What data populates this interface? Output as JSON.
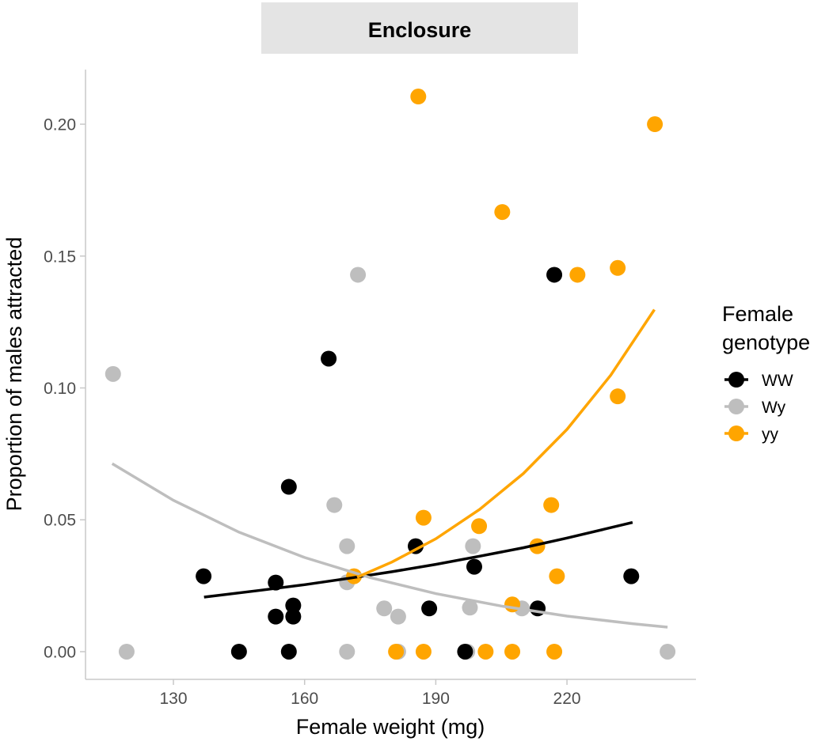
{
  "chart_data": {
    "type": "scatter",
    "facet_title": "Enclosure",
    "xlabel": "Female weight (mg)",
    "ylabel": "Proportion of males attracted",
    "xlim": [
      109.9,
      249.5
    ],
    "ylim": [
      -0.0105,
      0.2207
    ],
    "x_ticks": [
      130,
      160,
      190,
      220
    ],
    "x_tick_labels": [
      "130",
      "160",
      "190",
      "220"
    ],
    "y_ticks": [
      0.0,
      0.05,
      0.1,
      0.15,
      0.2
    ],
    "y_tick_labels": [
      "0.00",
      "0.05",
      "0.10",
      "0.15",
      "0.20"
    ],
    "grid": false,
    "legend": {
      "title": "Female genotype",
      "placement": "right",
      "entries": [
        "WW",
        "Wy",
        "yy"
      ]
    },
    "series": [
      {
        "name": "WW",
        "color": "#000000",
        "points": [
          [
            136.9,
            0.0286
          ],
          [
            145.0,
            0.0
          ],
          [
            153.4,
            0.0262
          ],
          [
            153.4,
            0.0133
          ],
          [
            156.4,
            0.0625
          ],
          [
            156.4,
            0.0
          ],
          [
            157.4,
            0.0175
          ],
          [
            157.4,
            0.0133
          ],
          [
            165.5,
            0.1111
          ],
          [
            185.4,
            0.04
          ],
          [
            188.5,
            0.0164
          ],
          [
            196.7,
            0.0
          ],
          [
            198.8,
            0.0322
          ],
          [
            213.3,
            0.0164
          ],
          [
            217.1,
            0.1429
          ],
          [
            234.7,
            0.0286
          ]
        ],
        "fit": [
          [
            137,
            0.0207
          ],
          [
            150,
            0.0233
          ],
          [
            160,
            0.0254
          ],
          [
            170,
            0.0278
          ],
          [
            180,
            0.0303
          ],
          [
            190,
            0.0331
          ],
          [
            200,
            0.0362
          ],
          [
            210,
            0.0394
          ],
          [
            220,
            0.0431
          ],
          [
            235,
            0.049
          ]
        ]
      },
      {
        "name": "Wy",
        "color": "#bebebe",
        "points": [
          [
            116.2,
            0.1053
          ],
          [
            119.3,
            0.0
          ],
          [
            166.8,
            0.0556
          ],
          [
            169.7,
            0.04
          ],
          [
            169.7,
            0.0263
          ],
          [
            169.7,
            0.0
          ],
          [
            172.2,
            0.1429
          ],
          [
            178.2,
            0.0164
          ],
          [
            181.4,
            0.0133
          ],
          [
            181.4,
            0.0
          ],
          [
            197.2,
            0.0
          ],
          [
            197.8,
            0.0167
          ],
          [
            198.5,
            0.04
          ],
          [
            209.7,
            0.0164
          ],
          [
            243.0,
            0.0
          ]
        ],
        "fit": [
          [
            116,
            0.0713
          ],
          [
            130,
            0.0574
          ],
          [
            145,
            0.0453
          ],
          [
            160,
            0.0357
          ],
          [
            175,
            0.0281
          ],
          [
            190,
            0.022
          ],
          [
            205,
            0.0173
          ],
          [
            220,
            0.0135
          ],
          [
            235,
            0.0106
          ],
          [
            243,
            0.0093
          ]
        ]
      },
      {
        "name": "yy",
        "color": "#ffa500",
        "points": [
          [
            171.3,
            0.0286
          ],
          [
            180.9,
            0.0
          ],
          [
            186.0,
            0.2105
          ],
          [
            187.2,
            0.0508
          ],
          [
            187.2,
            0.0
          ],
          [
            199.9,
            0.0476
          ],
          [
            201.4,
            0.0
          ],
          [
            205.2,
            0.1667
          ],
          [
            207.5,
            0.0179
          ],
          [
            207.5,
            0.0
          ],
          [
            213.2,
            0.04
          ],
          [
            216.4,
            0.0556
          ],
          [
            217.1,
            0.0
          ],
          [
            217.7,
            0.0286
          ],
          [
            222.4,
            0.1429
          ],
          [
            231.6,
            0.1455
          ],
          [
            231.6,
            0.0968
          ],
          [
            240.1,
            0.2
          ]
        ],
        "fit": [
          [
            172,
            0.0282
          ],
          [
            180,
            0.034
          ],
          [
            190,
            0.0428
          ],
          [
            200,
            0.0539
          ],
          [
            210,
            0.0675
          ],
          [
            220,
            0.0843
          ],
          [
            230,
            0.1048
          ],
          [
            240,
            0.1297
          ]
        ]
      }
    ]
  }
}
